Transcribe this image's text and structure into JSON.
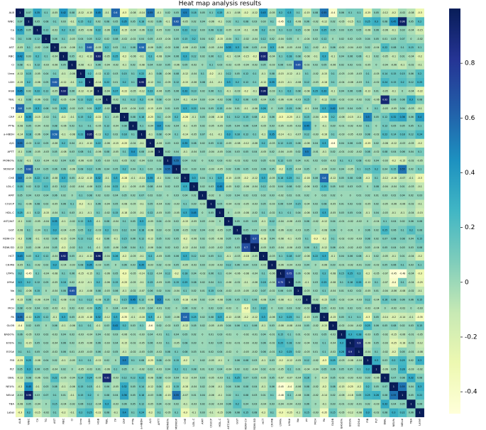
{
  "chart_data": {
    "type": "heatmap",
    "title": "Heat map analysis results",
    "labels": [
      "ALB",
      "WBC",
      "Ca",
      "TG",
      "AST",
      "RBC",
      "Cl",
      "Urea",
      "LDH",
      "HGB",
      "TBIL",
      "TP",
      "CRP",
      "PTTa",
      "a-HBDH",
      "A/G",
      "APTT",
      "MONO%",
      "MONO#",
      "CHE",
      "LDL-C",
      "AMY",
      "CO2CP",
      "HDL-C",
      "AST/ALT",
      "GGT",
      "RDW-CV",
      "RDW-SD",
      "HCT",
      "CK-MB",
      "LYM%",
      "LYM#",
      "Na",
      "PT",
      "MCH",
      "PA",
      "GLOB",
      "BASO%",
      "EOS%",
      "EOS#",
      "FIB",
      "PLT",
      "DBIL",
      "NEU%",
      "NEU#",
      "TBA",
      "Label"
    ],
    "values": [
      [
        1
      ],
      [
        0.07,
        1
      ],
      [
        0.35,
        0.05,
        1
      ],
      [
        0.1,
        0.08,
        0.12,
        1
      ],
      [
        -0.05,
        0.1,
        -0.02,
        0.06,
        1
      ],
      [
        0.42,
        0.03,
        0.2,
        0.1,
        -0.04,
        1
      ],
      [
        0.08,
        -0.1,
        0.12,
        -0.03,
        -0.06,
        0.05,
        1
      ],
      [
        -0.12,
        0.15,
        -0.05,
        0.04,
        0.1,
        -0.1,
        -0.08,
        1
      ],
      [
        -0.15,
        0.2,
        -0.08,
        0.05,
        0.62,
        -0.12,
        -0.1,
        0.2,
        1
      ],
      [
        0.45,
        0.02,
        0.22,
        0.12,
        -0.05,
        0.93,
        0.06,
        -0.12,
        -0.14,
        1
      ],
      [
        -0.1,
        0.08,
        -0.06,
        0.02,
        0.2,
        -0.05,
        -0.04,
        0.12,
        0.22,
        -0.04,
        1
      ],
      [
        0.6,
        0.05,
        0.3,
        0.08,
        0.02,
        0.25,
        -0.02,
        0.03,
        0.01,
        0.27,
        -0.02,
        1
      ],
      [
        -0.3,
        0.35,
        -0.15,
        -0.02,
        0.1,
        -0.2,
        -0.1,
        0.15,
        0.2,
        -0.22,
        0.1,
        -0.05,
        1
      ],
      [
        -0.08,
        0.05,
        -0.04,
        -0.02,
        0.08,
        -0.06,
        0.02,
        0.1,
        0.1,
        -0.05,
        0.12,
        -0.04,
        0.08,
        1
      ],
      [
        -0.14,
        0.18,
        -0.06,
        0.04,
        0.58,
        -0.1,
        -0.08,
        0.22,
        0.95,
        -0.12,
        0.2,
        0.02,
        0.18,
        0.1,
        1
      ],
      [
        0.55,
        -0.02,
        0.12,
        0.05,
        -0.06,
        0.2,
        0.04,
        -0.1,
        -0.12,
        0.22,
        -0.06,
        -0.15,
        -0.25,
        -0.04,
        -0.1,
        1
      ],
      [
        -0.1,
        0.06,
        -0.05,
        -0.03,
        0.05,
        -0.08,
        0.03,
        0.08,
        0.1,
        -0.06,
        0.08,
        -0.05,
        0.1,
        0.4,
        0.08,
        -0.06,
        1
      ],
      [
        0.02,
        -0.1,
        0.03,
        -0.04,
        -0.02,
        0.04,
        0.05,
        -0.06,
        -0.05,
        0.05,
        -0.03,
        0.01,
        -0.05,
        0.02,
        -0.04,
        0.03,
        0.02,
        1
      ],
      [
        0.05,
        0.62,
        0.04,
        0.05,
        0.06,
        0.06,
        -0.06,
        0.08,
        0.12,
        0.06,
        0.04,
        0.05,
        0.2,
        0.04,
        0.1,
        0.02,
        0.04,
        0.55,
        1
      ],
      [
        0.5,
        -0.05,
        0.22,
        0.15,
        -0.08,
        0.3,
        0.05,
        -0.12,
        -0.15,
        0.32,
        -0.1,
        0.3,
        -0.28,
        -0.1,
        -0.14,
        0.35,
        -0.1,
        0.04,
        0.02,
        1
      ],
      [
        0.18,
        0.02,
        0.12,
        0.2,
        -0.02,
        0.12,
        -0.02,
        -0.04,
        -0.06,
        0.13,
        -0.04,
        0.22,
        -0.1,
        -0.05,
        -0.05,
        0.08,
        -0.04,
        0.02,
        0.03,
        0.3,
        1
      ],
      [
        0.05,
        0.04,
        0.03,
        0.04,
        0.06,
        0.02,
        0,
        0.1,
        0.08,
        0.02,
        0.03,
        0.04,
        0.05,
        0.02,
        0.07,
        0.02,
        0.03,
        0,
        0.03,
        0.04,
        0.02,
        1
      ],
      [
        0.1,
        -0.06,
        0.08,
        0.02,
        -0.05,
        0.06,
        0.1,
        -0.2,
        -0.1,
        0.06,
        -0.04,
        0.05,
        -0.08,
        -0.05,
        -0.1,
        0.05,
        -0.04,
        0.02,
        -0.03,
        0.1,
        0.03,
        -0.02,
        1
      ],
      [
        0.25,
        -0.1,
        0.12,
        -0.15,
        -0.04,
        0.1,
        0.03,
        -0.1,
        -0.1,
        0.1,
        -0.02,
        0.15,
        -0.18,
        -0.05,
        -0.1,
        0.12,
        -0.05,
        0.03,
        -0.05,
        0.3,
        0.45,
        0,
        0.05,
        1
      ],
      [
        -0.1,
        0.02,
        -0.05,
        -0.04,
        0.35,
        -0.1,
        -0.02,
        0.12,
        0.3,
        -0.1,
        0.08,
        -0.04,
        0.1,
        0.05,
        0.3,
        -0.05,
        0.04,
        -0.02,
        0.02,
        -0.15,
        -0.05,
        0.03,
        -0.04,
        0,
        1
      ],
      [
        -0.08,
        0.1,
        -0.04,
        0.1,
        0.3,
        -0.04,
        -0.05,
        0.05,
        0.2,
        -0.03,
        0.2,
        0.01,
        0.12,
        0.04,
        0.18,
        -0.08,
        0.03,
        -0.02,
        0.06,
        -0.05,
        0.02,
        0.04,
        -0.02,
        -0.05,
        0.05,
        1
      ],
      [
        -0.2,
        0.08,
        -0.1,
        -0.02,
        0.06,
        -0.15,
        -0.04,
        0.12,
        0.12,
        -0.2,
        0.06,
        -0.1,
        0.15,
        0.06,
        0.12,
        -0.12,
        0.05,
        0.02,
        0.05,
        -0.2,
        -0.06,
        0.02,
        -0.05,
        -0.08,
        0.05,
        0.05,
        1
      ],
      [
        -0.12,
        0.03,
        -0.06,
        -0.04,
        0.05,
        -0.2,
        -0.02,
        0.1,
        0.1,
        -0.1,
        0.05,
        -0.06,
        0.08,
        0.04,
        0.1,
        -0.06,
        0.04,
        0.02,
        0.02,
        -0.12,
        -0.04,
        0.02,
        -0.03,
        -0.02,
        0.05,
        0.03,
        0.7,
        1
      ],
      [
        0.43,
        0.03,
        0.2,
        0.12,
        -0.04,
        0.92,
        0.05,
        -0.1,
        -0.12,
        0.96,
        -0.04,
        0.26,
        -0.2,
        -0.05,
        -0.1,
        0.2,
        -0.05,
        0.05,
        0.06,
        0.3,
        0.12,
        0.02,
        0.05,
        0.1,
        -0.1,
        -0.03,
        -0.18,
        -0.05,
        1
      ],
      [
        -0.05,
        0.1,
        -0.02,
        0.02,
        0.3,
        -0.04,
        -0.03,
        0.08,
        0.35,
        -0.03,
        0.05,
        0,
        0.06,
        0.03,
        0.35,
        -0.03,
        0.02,
        -0.02,
        0.05,
        -0.05,
        -0.02,
        0.03,
        -0.03,
        -0.02,
        0.12,
        0.06,
        0.04,
        0.03,
        -0.03,
        1
      ],
      [
        0.2,
        -0.45,
        0.1,
        -0.04,
        -0.08,
        0.1,
        0.06,
        -0.15,
        -0.15,
        0.1,
        -0.06,
        0.05,
        -0.3,
        -0.05,
        -0.14,
        0.12,
        -0.04,
        0.12,
        -0.2,
        0.18,
        0.04,
        -0.02,
        0.06,
        0.1,
        -0.04,
        -0.06,
        -0.08,
        -0.04,
        0.1,
        -0.06,
        1
      ],
      [
        0.3,
        0.2,
        0.12,
        0.05,
        -0.05,
        0.18,
        0.02,
        -0.12,
        -0.1,
        0.2,
        -0.06,
        0.15,
        -0.25,
        -0.05,
        -0.1,
        0.15,
        -0.05,
        0.05,
        0.15,
        0.25,
        0.08,
        0.02,
        0.04,
        0.1,
        -0.06,
        -0.02,
        -0.1,
        -0.06,
        0.18,
        -0.04,
        0.75,
        1
      ],
      [
        0.1,
        -0.08,
        0.15,
        0,
        -0.04,
        0.08,
        0.65,
        -0.1,
        -0.08,
        0.08,
        -0.03,
        0.06,
        -0.1,
        -0.02,
        -0.07,
        0.06,
        0.02,
        0.04,
        -0.04,
        0.1,
        0.02,
        0.01,
        0.15,
        0.04,
        -0.02,
        -0.03,
        -0.05,
        -0.02,
        0.07,
        -0.02,
        0.06,
        0.05,
        1
      ],
      [
        -0.15,
        0.06,
        -0.08,
        -0.04,
        0.1,
        -0.08,
        -0.02,
        0.1,
        0.12,
        -0.08,
        0.15,
        -0.1,
        0.15,
        0.45,
        0.12,
        -0.08,
        0.5,
        0.01,
        0.05,
        -0.18,
        -0.06,
        0.02,
        -0.04,
        -0.08,
        0.06,
        0.05,
        0.1,
        0.06,
        -0.08,
        0.04,
        -0.08,
        -0.1,
        -0.03,
        1
      ],
      [
        0.08,
        -0.02,
        0.04,
        0.02,
        -0.02,
        -0.1,
        0.02,
        -0.02,
        -0.03,
        0.25,
        0,
        0.04,
        -0.04,
        0,
        -0.03,
        0.04,
        -0.01,
        0.02,
        0,
        0.06,
        0.02,
        0,
        0.02,
        0.03,
        -0.02,
        0,
        -0.3,
        0.1,
        0.22,
        0,
        0.02,
        0.03,
        0.02,
        -0.02,
        1
      ],
      [
        0.55,
        -0.12,
        0.25,
        0.12,
        -0.1,
        0.3,
        0.05,
        -0.15,
        -0.18,
        0.32,
        -0.12,
        0.3,
        -0.35,
        -0.1,
        -0.16,
        0.3,
        -0.1,
        0.03,
        -0.06,
        0.6,
        0.25,
        0.02,
        0.08,
        0.3,
        -0.12,
        -0.08,
        -0.2,
        -0.12,
        0.3,
        -0.06,
        0.2,
        0.25,
        0.1,
        -0.15,
        0.05,
        1
      ],
      [
        -0.4,
        0.02,
        0.05,
        0,
        0.06,
        -0.1,
        -0.06,
        0.1,
        0.1,
        -0.1,
        0.03,
        0.42,
        0.2,
        0.03,
        0.1,
        -0.6,
        0.02,
        -0.02,
        0.03,
        -0.12,
        0.05,
        0.02,
        -0.05,
        -0.05,
        0.04,
        0.06,
        0.1,
        0.06,
        -0.1,
        0.03,
        -0.08,
        -0.08,
        -0.04,
        0.05,
        -0.02,
        -0.15,
        1
      ],
      [
        0.06,
        -0.05,
        0.03,
        0.02,
        -0.02,
        0.04,
        0.02,
        -0.03,
        -0.04,
        0.04,
        -0.02,
        0.03,
        -0.06,
        -0.01,
        -0.03,
        0.04,
        -0.01,
        0.1,
        0.04,
        0.05,
        0.02,
        0,
        0.01,
        0.03,
        -0.01,
        0,
        -0.02,
        -0.01,
        0.04,
        -0.01,
        0.15,
        0.1,
        0.01,
        -0.02,
        0.01,
        0.05,
        -0.02,
        1
      ],
      [
        0.1,
        -0.15,
        0.05,
        0.02,
        -0.04,
        0.06,
        0.02,
        -0.05,
        -0.06,
        0.06,
        -0.03,
        0.04,
        -0.15,
        -0.02,
        -0.05,
        0.06,
        -0.02,
        0.1,
        -0.05,
        0.08,
        0.03,
        0,
        0.02,
        0.05,
        -0.02,
        -0.01,
        -0.03,
        -0.02,
        0.06,
        -0.02,
        0.25,
        0.18,
        0.02,
        -0.04,
        0.02,
        0.1,
        -0.04,
        0.3,
        1
      ],
      [
        0.1,
        0.1,
        0.05,
        0.03,
        -0.02,
        0.06,
        0.01,
        -0.03,
        -0.03,
        0.06,
        -0.02,
        0.05,
        -0.1,
        -0.02,
        -0.03,
        0.05,
        -0.02,
        0.08,
        0.1,
        0.08,
        0.03,
        0.01,
        0.02,
        0.04,
        -0.02,
        0,
        -0.03,
        -0.02,
        0.06,
        -0.01,
        0.2,
        0.25,
        0.02,
        -0.03,
        0.01,
        0.1,
        -0.02,
        0.28,
        0.9,
        1
      ],
      [
        -0.25,
        0.25,
        -0.08,
        0.04,
        0.02,
        -0.1,
        -0.05,
        0.1,
        0.1,
        -0.12,
        0.02,
        0,
        0.5,
        0.1,
        0.08,
        -0.25,
        0.08,
        -0.02,
        0.15,
        -0.2,
        0,
        0.02,
        -0.05,
        -0.1,
        0,
        0.06,
        0.08,
        0.03,
        -0.1,
        0.03,
        -0.2,
        -0.12,
        -0.05,
        0.12,
        -0.02,
        -0.3,
        0.25,
        -0.03,
        -0.08,
        -0.04,
        1
      ],
      [
        0.05,
        0.3,
        0.06,
        0.05,
        -0.04,
        0.02,
        0,
        -0.05,
        -0.02,
        0.01,
        -0.06,
        0.1,
        0.05,
        0,
        -0.02,
        0.02,
        -0.02,
        0.04,
        0.2,
        0.1,
        0.08,
        0.01,
        0.02,
        0.04,
        -0.04,
        0.02,
        0.02,
        -0.04,
        0.02,
        -0.02,
        -0.05,
        0.1,
        0.01,
        -0.04,
        -0.04,
        0.05,
        0.06,
        0.05,
        0.05,
        0.1,
        0.3,
        1
      ],
      [
        -0.12,
        0.08,
        -0.06,
        0.01,
        0.22,
        -0.05,
        -0.04,
        0.14,
        0.24,
        -0.05,
        0.92,
        -0.03,
        0.12,
        0.12,
        0.22,
        -0.08,
        0.08,
        -0.03,
        0.04,
        -0.12,
        -0.04,
        0.03,
        -0.05,
        -0.03,
        0.1,
        0.25,
        0.07,
        0.05,
        -0.05,
        0.05,
        -0.07,
        -0.07,
        -0.04,
        0.16,
        0,
        -0.14,
        0.05,
        -0.02,
        -0.03,
        -0.02,
        0.03,
        -0.06,
        1
      ],
      [
        -0.2,
        0.45,
        -0.1,
        0.03,
        0.08,
        -0.1,
        -0.06,
        0.15,
        0.15,
        -0.1,
        0.06,
        -0.05,
        0.32,
        0.05,
        0.14,
        -0.12,
        0.04,
        -0.2,
        0.15,
        -0.18,
        -0.04,
        0.02,
        -0.06,
        -0.1,
        0.04,
        0.06,
        0.08,
        0.04,
        -0.1,
        0.06,
        -0.45,
        -0.4,
        -0.06,
        0.08,
        -0.02,
        -0.2,
        0.08,
        -0.15,
        -0.25,
        -0.2,
        0.2,
        0.05,
        0.07,
        1
      ],
      [
        -0.02,
        0.96,
        0.03,
        0.07,
        0.1,
        0.01,
        -0.1,
        0.15,
        0.2,
        0,
        0.08,
        0.04,
        0.36,
        0.05,
        0.18,
        -0.03,
        0.06,
        -0.15,
        0.55,
        -0.07,
        0.01,
        0.04,
        -0.06,
        -0.1,
        0.02,
        0.1,
        0.08,
        0.03,
        0.01,
        0.1,
        -0.48,
        0.1,
        -0.08,
        0.06,
        -0.02,
        -0.14,
        0.02,
        -0.06,
        -0.18,
        0.05,
        0.25,
        0.28,
        0.08,
        0.55,
        1
      ],
      [
        -0.08,
        0.05,
        -0.04,
        0,
        0.15,
        -0.04,
        -0.02,
        0.06,
        0.12,
        -0.04,
        0.3,
        -0.03,
        0.06,
        0.05,
        0.12,
        -0.05,
        0.04,
        -0.02,
        0.02,
        -0.1,
        -0.03,
        0.02,
        -0.02,
        -0.04,
        0.06,
        0.2,
        0.04,
        0.03,
        -0.04,
        0.03,
        -0.04,
        -0.04,
        -0.02,
        0.06,
        0,
        -0.1,
        0.03,
        -0.01,
        -0.02,
        -0.01,
        0.02,
        -0.03,
        0.32,
        0.04,
        0.05,
        1
      ],
      [
        -0.3,
        0.2,
        -0.15,
        -0.02,
        0.1,
        -0.2,
        -0.1,
        0.2,
        0.25,
        -0.22,
        0.08,
        -0.1,
        0.4,
        0.1,
        0.24,
        -0.2,
        0.1,
        -0.05,
        0.1,
        -0.3,
        -0.1,
        0.03,
        -0.1,
        -0.15,
        0.06,
        0.08,
        0.15,
        0.08,
        -0.2,
        0.1,
        -0.3,
        -0.25,
        -0.1,
        0.15,
        -0.03,
        -0.35,
        0.15,
        -0.05,
        -0.12,
        -0.08,
        0.3,
        -0.02,
        0.08,
        0.3,
        0.22,
        0.06,
        1
      ]
    ],
    "zlim": [
      -0.48,
      1
    ],
    "zticks": [
      -0.4,
      -0.2,
      0.0,
      0.2,
      0.4,
      0.6,
      0.8
    ],
    "colormap": [
      "#ffffd9",
      "#edf8b1",
      "#c7e9b4",
      "#7fcdbb",
      "#41b6c4",
      "#1d91c0",
      "#225ea8",
      "#253494",
      "#081d58"
    ]
  }
}
